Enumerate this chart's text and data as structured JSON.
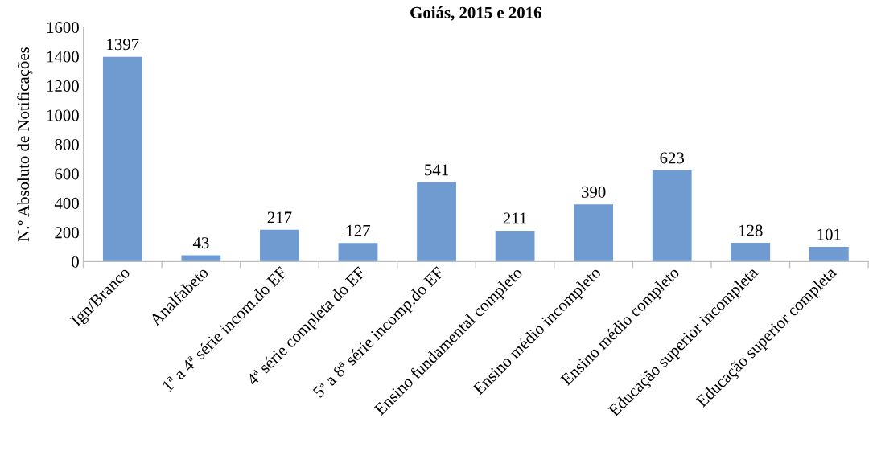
{
  "chart_data": {
    "type": "bar",
    "title": "Goiás, 2015 e 2016",
    "ylabel": "N.º Absoluto de Notificações",
    "categories": [
      "Ign/Branco",
      "Analfabeto",
      "1ª a 4ª série incom.do EF",
      "4ª série completa do EF",
      "5ª a 8ª série incomp.do EF",
      "Ensino fundamental completo",
      "Ensino médio incompleto",
      "Ensino médio completo",
      "Educação superior incompleta",
      "Educação superior completa"
    ],
    "values": [
      1397,
      43,
      217,
      127,
      541,
      211,
      390,
      623,
      128,
      101
    ],
    "color": "#6f9bd1",
    "ylim": [
      0,
      1600
    ],
    "yticks": [
      0,
      200,
      400,
      600,
      800,
      1000,
      1200,
      1400,
      1600
    ],
    "data_labels": true,
    "grid": false
  }
}
